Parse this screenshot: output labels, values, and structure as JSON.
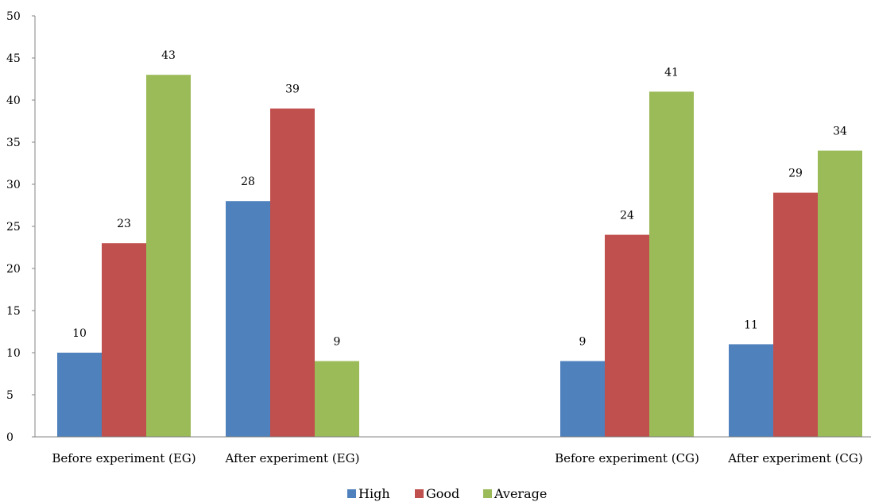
{
  "chart_data": {
    "type": "bar",
    "title": "",
    "xlabel": "",
    "ylabel": "",
    "ylim": [
      0,
      50
    ],
    "ytick_step": 5,
    "grid": false,
    "legend_position": "bottom",
    "categories": [
      "Before experiment (EG)",
      "After experiment (EG)",
      "",
      "Before experiment (CG)",
      "After experiment (CG)"
    ],
    "series": [
      {
        "name": "High",
        "color": "#4F81BD",
        "values": [
          10,
          28,
          null,
          9,
          11
        ]
      },
      {
        "name": "Good",
        "color": "#C0504D",
        "values": [
          23,
          39,
          null,
          24,
          29
        ]
      },
      {
        "name": "Average",
        "color": "#9BBB59",
        "values": [
          43,
          9,
          null,
          41,
          34
        ]
      }
    ]
  }
}
